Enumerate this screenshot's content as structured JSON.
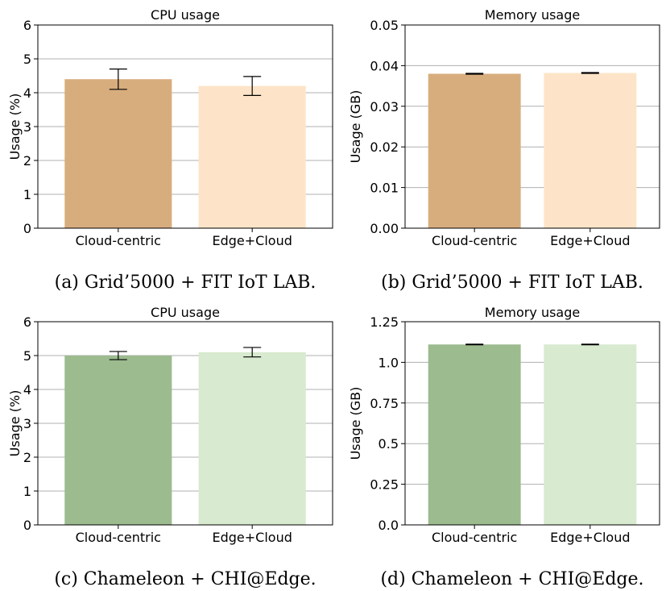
{
  "chart_data": [
    {
      "type": "bar",
      "title": "CPU usage",
      "ylabel": "Usage (%)",
      "categories": [
        "Cloud-centric",
        "Edge+Cloud"
      ],
      "values": [
        4.4,
        4.2
      ],
      "errors": [
        0.3,
        0.28
      ],
      "ylim": [
        0,
        6
      ],
      "yticks": [
        0,
        1,
        2,
        3,
        4,
        5,
        6
      ],
      "ytick_labels": [
        "0",
        "1",
        "2",
        "3",
        "4",
        "5",
        "6"
      ],
      "colors": [
        "#d8ad7e",
        "#fde4c8"
      ],
      "grid": true,
      "caption": "(a) Grid’5000 + FIT IoT LAB."
    },
    {
      "type": "bar",
      "title": "Memory usage",
      "ylabel": "Usage (GB)",
      "categories": [
        "Cloud-centric",
        "Edge+Cloud"
      ],
      "values": [
        0.038,
        0.0382
      ],
      "errors": [
        0.0001,
        0.0001
      ],
      "ylim": [
        0,
        0.05
      ],
      "yticks": [
        0,
        0.01,
        0.02,
        0.03,
        0.04,
        0.05
      ],
      "ytick_labels": [
        "0.00",
        "0.01",
        "0.02",
        "0.03",
        "0.04",
        "0.05"
      ],
      "colors": [
        "#d8ad7e",
        "#fde4c8"
      ],
      "grid": true,
      "caption": "(b) Grid’5000 + FIT IoT LAB."
    },
    {
      "type": "bar",
      "title": "CPU usage",
      "ylabel": "Usage (%)",
      "categories": [
        "Cloud-centric",
        "Edge+Cloud"
      ],
      "values": [
        5.0,
        5.1
      ],
      "errors": [
        0.12,
        0.14
      ],
      "ylim": [
        0,
        6
      ],
      "yticks": [
        0,
        1,
        2,
        3,
        4,
        5,
        6
      ],
      "ytick_labels": [
        "0",
        "1",
        "2",
        "3",
        "4",
        "5",
        "6"
      ],
      "colors": [
        "#9cbb8f",
        "#d8eacf"
      ],
      "grid": true,
      "caption": "(c) Chameleon + CHI@Edge."
    },
    {
      "type": "bar",
      "title": "Memory usage",
      "ylabel": "Usage (GB)",
      "categories": [
        "Cloud-centric",
        "Edge+Cloud"
      ],
      "values": [
        1.11,
        1.11
      ],
      "errors": [
        0.002,
        0.002
      ],
      "ylim": [
        0,
        1.25
      ],
      "yticks": [
        0,
        0.25,
        0.5,
        0.75,
        1.0,
        1.25
      ],
      "ytick_labels": [
        "0.0",
        "0.25",
        "0.5",
        "0.75",
        "1.0",
        "1.25"
      ],
      "colors": [
        "#9cbb8f",
        "#d8eacf"
      ],
      "grid": true,
      "caption": "(d) Chameleon + CHI@Edge."
    }
  ]
}
